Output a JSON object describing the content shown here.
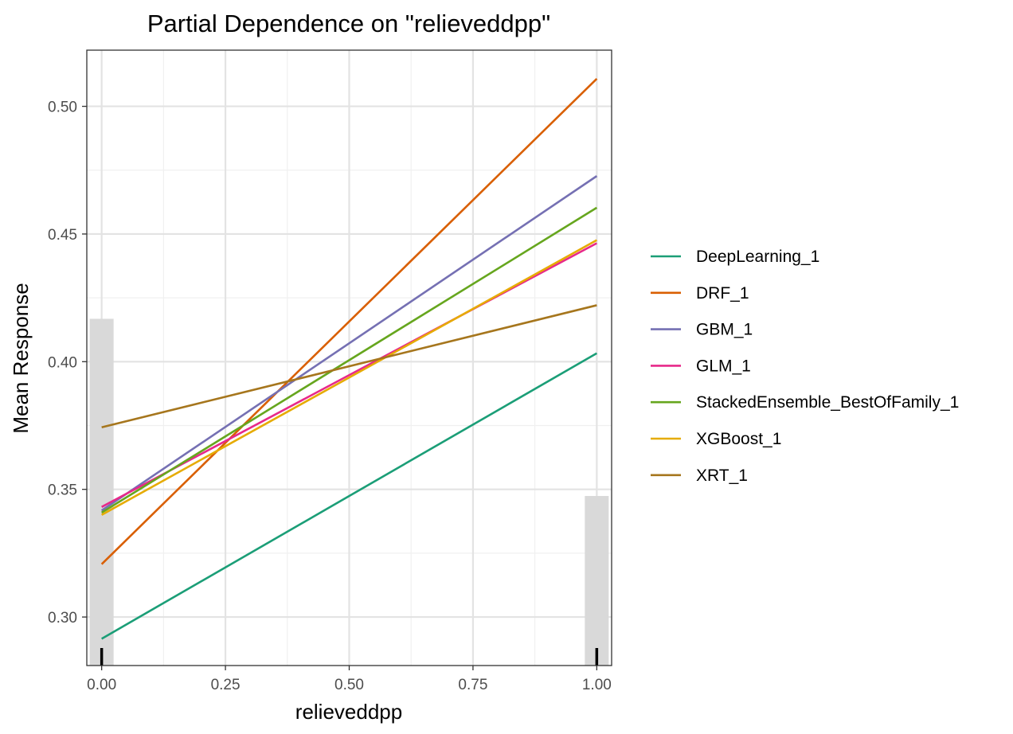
{
  "chart_data": {
    "type": "line",
    "title": "Partial Dependence on \"relieveddpp\"",
    "xlabel": "relieveddpp",
    "ylabel": "Mean Response",
    "xlim": [
      -0.03,
      1.03
    ],
    "ylim": [
      0.281,
      0.522
    ],
    "x_ticks": [
      0.0,
      0.25,
      0.5,
      0.75,
      1.0
    ],
    "x_tick_labels": [
      "0.00",
      "0.25",
      "0.50",
      "0.75",
      "1.00"
    ],
    "y_ticks": [
      0.3,
      0.35,
      0.4,
      0.45,
      0.5
    ],
    "y_tick_labels": [
      "0.30",
      "0.35",
      "0.40",
      "0.45",
      "0.50"
    ],
    "grid": true,
    "legend_position": "right",
    "x": [
      0,
      1
    ],
    "series": [
      {
        "name": "DeepLearning_1",
        "color": "#1b9e77",
        "values": [
          0.2915,
          0.4033
        ]
      },
      {
        "name": "DRF_1",
        "color": "#d95f02",
        "values": [
          0.3207,
          0.5108
        ]
      },
      {
        "name": "GBM_1",
        "color": "#7570b3",
        "values": [
          0.3417,
          0.4727
        ]
      },
      {
        "name": "GLM_1",
        "color": "#e7298a",
        "values": [
          0.3431,
          0.4464
        ]
      },
      {
        "name": "StackedEnsemble_BestOfFamily_1",
        "color": "#66a61e",
        "values": [
          0.3409,
          0.4603
        ]
      },
      {
        "name": "XGBoost_1",
        "color": "#e6ab02",
        "values": [
          0.34,
          0.4476
        ]
      },
      {
        "name": "XRT_1",
        "color": "#a6761d",
        "values": [
          0.3743,
          0.4221
        ]
      }
    ],
    "histogram": {
      "color": "#d9d9d9",
      "bars": [
        {
          "x": 0,
          "top": 0.4168
        },
        {
          "x": 1,
          "top": 0.3474
        }
      ]
    },
    "rug_x": [
      0,
      1
    ]
  }
}
